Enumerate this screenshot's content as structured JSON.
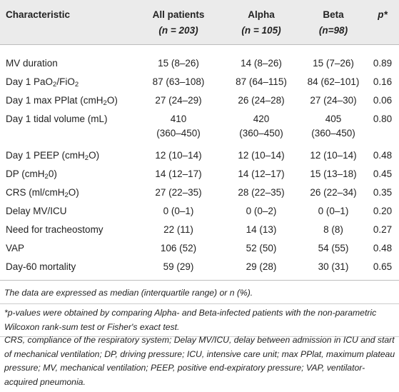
{
  "header": {
    "characteristic": "Characteristic",
    "all_patients": "All patients",
    "all_n": "(n = 203)",
    "alpha": "Alpha",
    "alpha_n": "(n = 105)",
    "beta": "Beta",
    "beta_n": "(n=98)",
    "p": "p*"
  },
  "rows": [
    {
      "label": "MV duration",
      "all": "15 (8–26)",
      "alpha": "14 (8–26)",
      "beta": "15 (7–26)",
      "p": "0.89"
    },
    {
      "label_pre": "Day 1 PaO",
      "label_sub1": "2",
      "label_mid": "/FiO",
      "label_sub2": "2",
      "all": "87 (63–108)",
      "alpha": "87 (64–115)",
      "beta": "84 (62–101)",
      "p": "0.16"
    },
    {
      "label_pre": "Day 1 max PPlat (cmH",
      "label_sub1": "2",
      "label_mid": "O)",
      "all": "27 (24–29)",
      "alpha": "26 (24–28)",
      "beta": "27 (24–30)",
      "p": "0.06"
    },
    {
      "label": "Day 1 tidal volume (mL)",
      "all": "410",
      "all2": "(360–450)",
      "alpha": "420",
      "alpha2": "(360–450)",
      "beta": "405",
      "beta2": "(360–450)",
      "p": "0.80"
    },
    {
      "label_pre": "Day 1 PEEP (cmH",
      "label_sub1": "2",
      "label_mid": "O)",
      "all": "12 (10–14)",
      "alpha": "12 (10–14)",
      "beta": "12 (10–14)",
      "p": "0.48"
    },
    {
      "label_pre": "DP (cmH",
      "label_sub1": "2",
      "label_mid": "0)",
      "all": "14 (12–17)",
      "alpha": "14 (12–17)",
      "beta": "15 (13–18)",
      "p": "0.45"
    },
    {
      "label_pre": "CRS (ml/cmH",
      "label_sub1": "2",
      "label_mid": "O)",
      "all": "27 (22–35)",
      "alpha": "28 (22–35)",
      "beta": "26 (22–34)",
      "p": "0.35"
    },
    {
      "label": "Delay MV/ICU",
      "all": "0 (0–1)",
      "alpha": "0 (0–2)",
      "beta": "0 (0–1)",
      "p": "0.20"
    },
    {
      "label": "Need for tracheostomy",
      "all": "22 (11)",
      "alpha": "14 (13)",
      "beta": "8 (8)",
      "p": "0.27"
    },
    {
      "label": "VAP",
      "all": "106 (52)",
      "alpha": "52 (50)",
      "beta": "54 (55)",
      "p": "0.48"
    },
    {
      "label": "Day-60 mortality",
      "all": "59 (29)",
      "alpha": "29 (28)",
      "beta": "30 (31)",
      "p": "0.65"
    }
  ],
  "footnotes": {
    "f1": "The data are expressed as median (interquartile range) or n (%).",
    "f2": "*p-values were obtained by comparing Alpha- and Beta-infected patients with the non-parametric Wilcoxon rank-sum test or Fisher's exact test.",
    "f3": "CRS, compliance of the respiratory system; Delay MV/ICU, delay between admission in ICU and start of mechanical ventilation; DP, driving pressure; ICU, intensive care unit; max PPlat, maximum plateau pressure; MV, mechanical ventilation; PEEP, positive end-expiratory pressure; VAP, ventilator-acquired pneumonia."
  }
}
